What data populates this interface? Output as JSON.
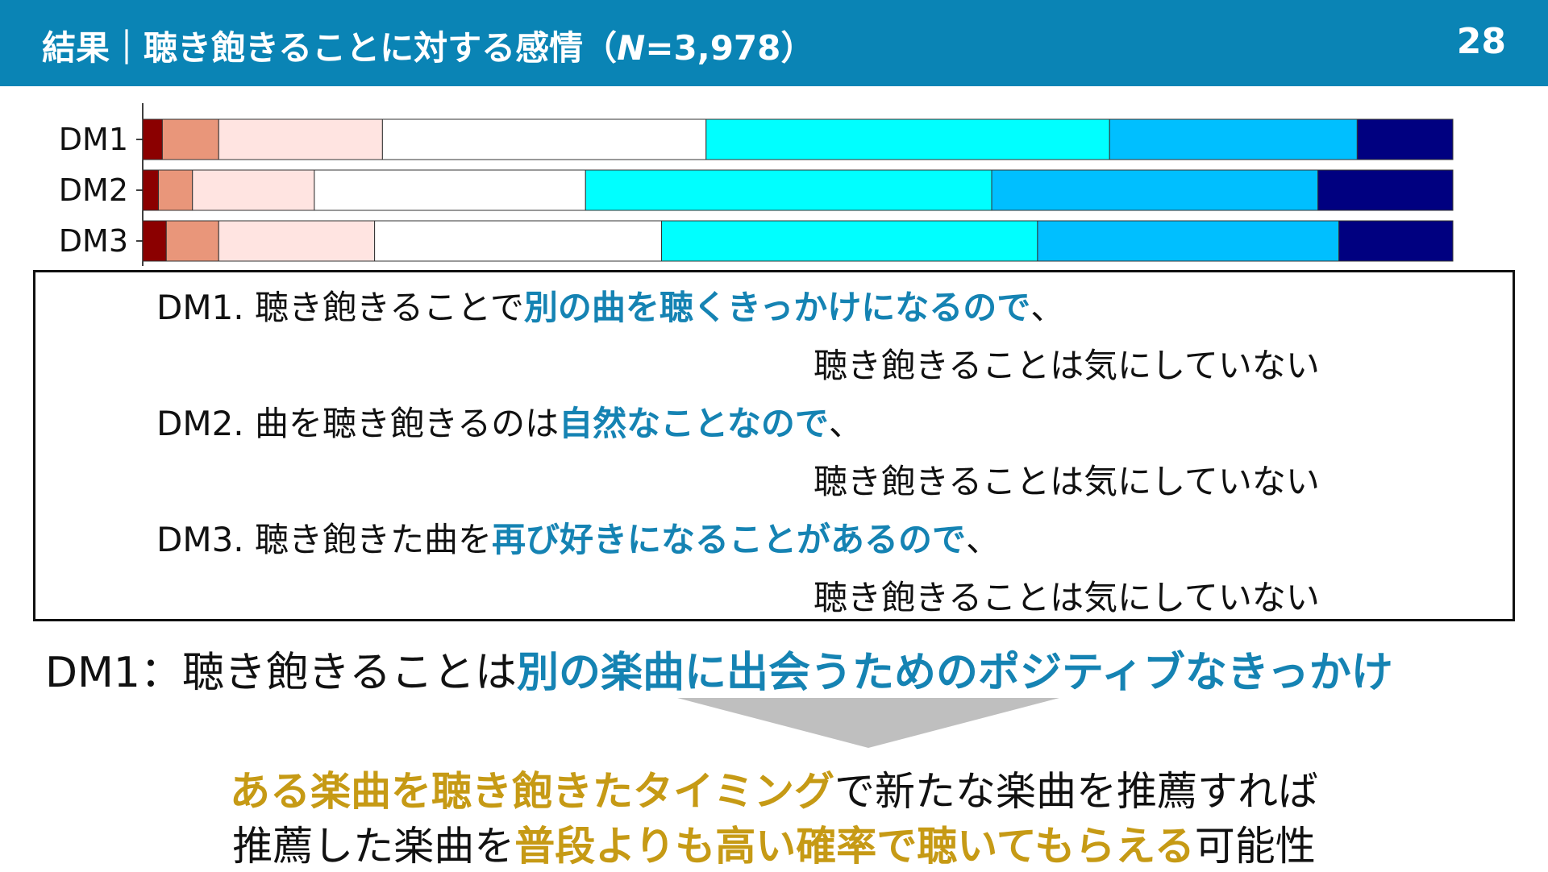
{
  "header": {
    "title_prefix": "結果｜聴き飽きることに対する感情（",
    "title_n": "N",
    "title_suffix": "=3,978）",
    "page_number": "28"
  },
  "chart_data": {
    "type": "bar",
    "stacked": "horizontal-100%",
    "categories": [
      "DM1",
      "DM2",
      "DM3"
    ],
    "xlim": [
      0,
      100
    ],
    "colors": [
      "#8b0000",
      "#e9967a",
      "#ffe4e1",
      "#ffffff",
      "#00ffff",
      "#00bfff",
      "#000080"
    ],
    "rows": [
      [
        1.5,
        4.3,
        12.5,
        24.7,
        30.8,
        18.9,
        7.3
      ],
      [
        1.2,
        2.6,
        9.3,
        20.7,
        31.0,
        24.9,
        10.3
      ],
      [
        1.8,
        4.0,
        11.9,
        21.9,
        28.7,
        23.0,
        8.7
      ]
    ],
    "grid": false,
    "legend": "none"
  },
  "descriptions": [
    {
      "prefix": "DM1. 聴き飽きることで",
      "highlight": "別の曲を聴くきっかけになるので",
      "suffix": "、",
      "continuation": "聴き飽きることは気にしていない"
    },
    {
      "prefix": "DM2. 曲を聴き飽きるのは",
      "highlight": "自然なことなので",
      "suffix": "、",
      "continuation": "聴き飽きることは気にしていない"
    },
    {
      "prefix": "DM3. 聴き飽きた曲を",
      "highlight": "再び好きになることがあるので",
      "suffix": "、",
      "continuation": "聴き飽きることは気にしていない"
    }
  ],
  "summary": {
    "prefix": "DM1：聴き飽きることは",
    "highlight": "別の楽曲に出会うためのポジティブなきっかけ"
  },
  "conclusion": {
    "line1_highlight": "ある楽曲を聴き飽きたタイミング",
    "line1_rest": "で新たな楽曲を推薦すれば",
    "line2_prefix": "推薦した楽曲を",
    "line2_highlight": "普段よりも高い確率で聴いてもらえる",
    "line2_suffix": "可能性"
  }
}
